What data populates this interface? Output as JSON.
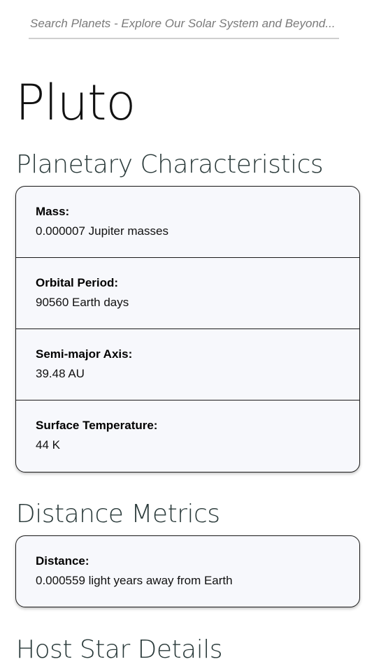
{
  "search": {
    "placeholder": "Search Planets - Explore Our Solar System and Beyond..."
  },
  "planet": {
    "name": "Pluto"
  },
  "sections": {
    "characteristics": {
      "title": "Planetary Characteristics",
      "items": [
        {
          "label": "Mass:",
          "value": "0.000007 Jupiter masses"
        },
        {
          "label": "Orbital Period:",
          "value": "90560 Earth days"
        },
        {
          "label": "Semi-major Axis:",
          "value": "39.48 AU"
        },
        {
          "label": "Surface Temperature:",
          "value": "44 K"
        }
      ]
    },
    "distance": {
      "title": "Distance Metrics",
      "items": [
        {
          "label": "Distance:",
          "value": "0.000559 light years away from Earth"
        }
      ]
    },
    "host_star": {
      "title": "Host Star Details"
    }
  },
  "colors": {
    "card_background": "#f7f8fc",
    "card_border": "#1a1a1a",
    "search_underline": "#cfcfcf"
  }
}
